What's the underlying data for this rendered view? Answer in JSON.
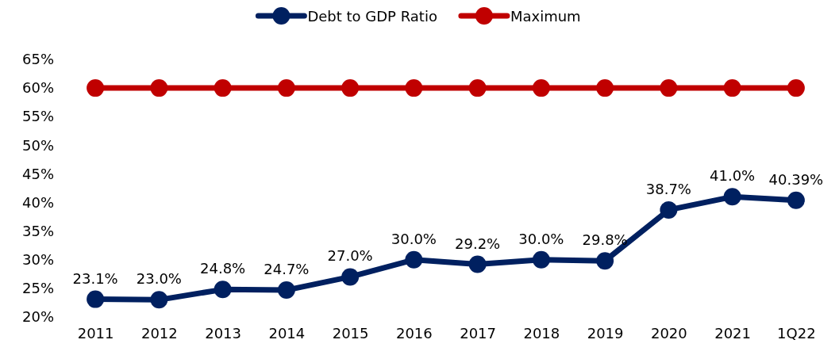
{
  "chart_data": {
    "type": "line",
    "categories": [
      "2011",
      "2012",
      "2013",
      "2014",
      "2015",
      "2016",
      "2017",
      "2018",
      "2019",
      "2020",
      "2021",
      "1Q22"
    ],
    "series": [
      {
        "name": "Debt to GDP Ratio",
        "color": "#002060",
        "values": [
          23.1,
          23.0,
          24.8,
          24.7,
          27.0,
          30.0,
          29.2,
          30.0,
          29.8,
          38.7,
          41.0,
          40.39
        ],
        "value_labels": [
          "23.1%",
          "23.0%",
          "24.8%",
          "24.7%",
          "27.0%",
          "30.0%",
          "29.2%",
          "30.0%",
          "29.8%",
          "38.7%",
          "41.0%",
          "40.39%"
        ]
      },
      {
        "name": "Maximum",
        "color": "#c00000",
        "values": [
          60,
          60,
          60,
          60,
          60,
          60,
          60,
          60,
          60,
          60,
          60,
          60
        ]
      }
    ],
    "ylim": [
      20,
      65
    ],
    "yticks": [
      {
        "value": 20,
        "label": "20%"
      },
      {
        "value": 25,
        "label": "25%"
      },
      {
        "value": 30,
        "label": "30%"
      },
      {
        "value": 35,
        "label": "35%"
      },
      {
        "value": 40,
        "label": "40%"
      },
      {
        "value": 45,
        "label": "45%"
      },
      {
        "value": 50,
        "label": "50%"
      },
      {
        "value": 55,
        "label": "55%"
      },
      {
        "value": 60,
        "label": "60%"
      },
      {
        "value": 65,
        "label": "65%"
      }
    ],
    "grid": false,
    "legend": "top",
    "marker": "circle",
    "line_style": "solid"
  }
}
